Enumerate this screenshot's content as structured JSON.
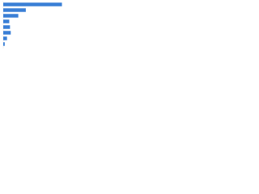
{
  "chart_data": {
    "type": "bar",
    "orientation": "horizontal",
    "categories": [
      null,
      null,
      null,
      null,
      null,
      null,
      null,
      null
    ],
    "values": [
      78,
      30,
      20,
      8,
      9,
      10,
      5,
      2
    ],
    "color": "#3a7fd6",
    "xlim": [
      0,
      100
    ]
  }
}
